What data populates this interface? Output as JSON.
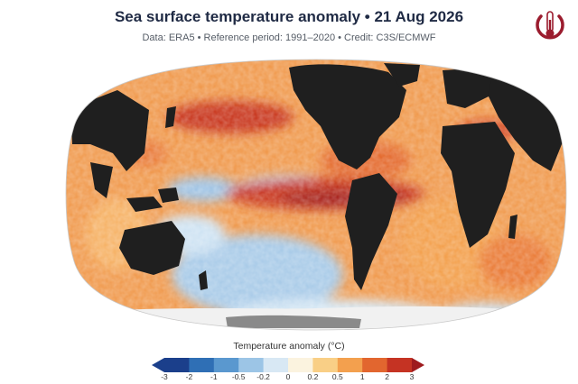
{
  "header": {
    "title": "Sea surface temperature anomaly • 21 Aug 2026",
    "subtitle": "Data: ERA5 • Reference period: 1991–2020 • Credit: C3S/ECMWF"
  },
  "logo": {
    "icon": "thermometer-ring-icon",
    "color": "#9b1c2e"
  },
  "legend": {
    "title": "Temperature anomaly (°C)",
    "ticks": [
      "-3",
      "-2",
      "-1",
      "-0.5",
      "-0.2",
      "0",
      "0.2",
      "0.5",
      "1",
      "2",
      "3"
    ],
    "colors": [
      "#1b3f8b",
      "#2f6fb5",
      "#5a98cf",
      "#9cc5e6",
      "#d8e8f4",
      "#fbf3df",
      "#f9cf86",
      "#f3a04e",
      "#e2662f",
      "#c53323",
      "#9e1b1e"
    ]
  },
  "map": {
    "projection": "Robinson",
    "land_color": "#1f1f1f",
    "ice_color": "#f1f1f1"
  }
}
